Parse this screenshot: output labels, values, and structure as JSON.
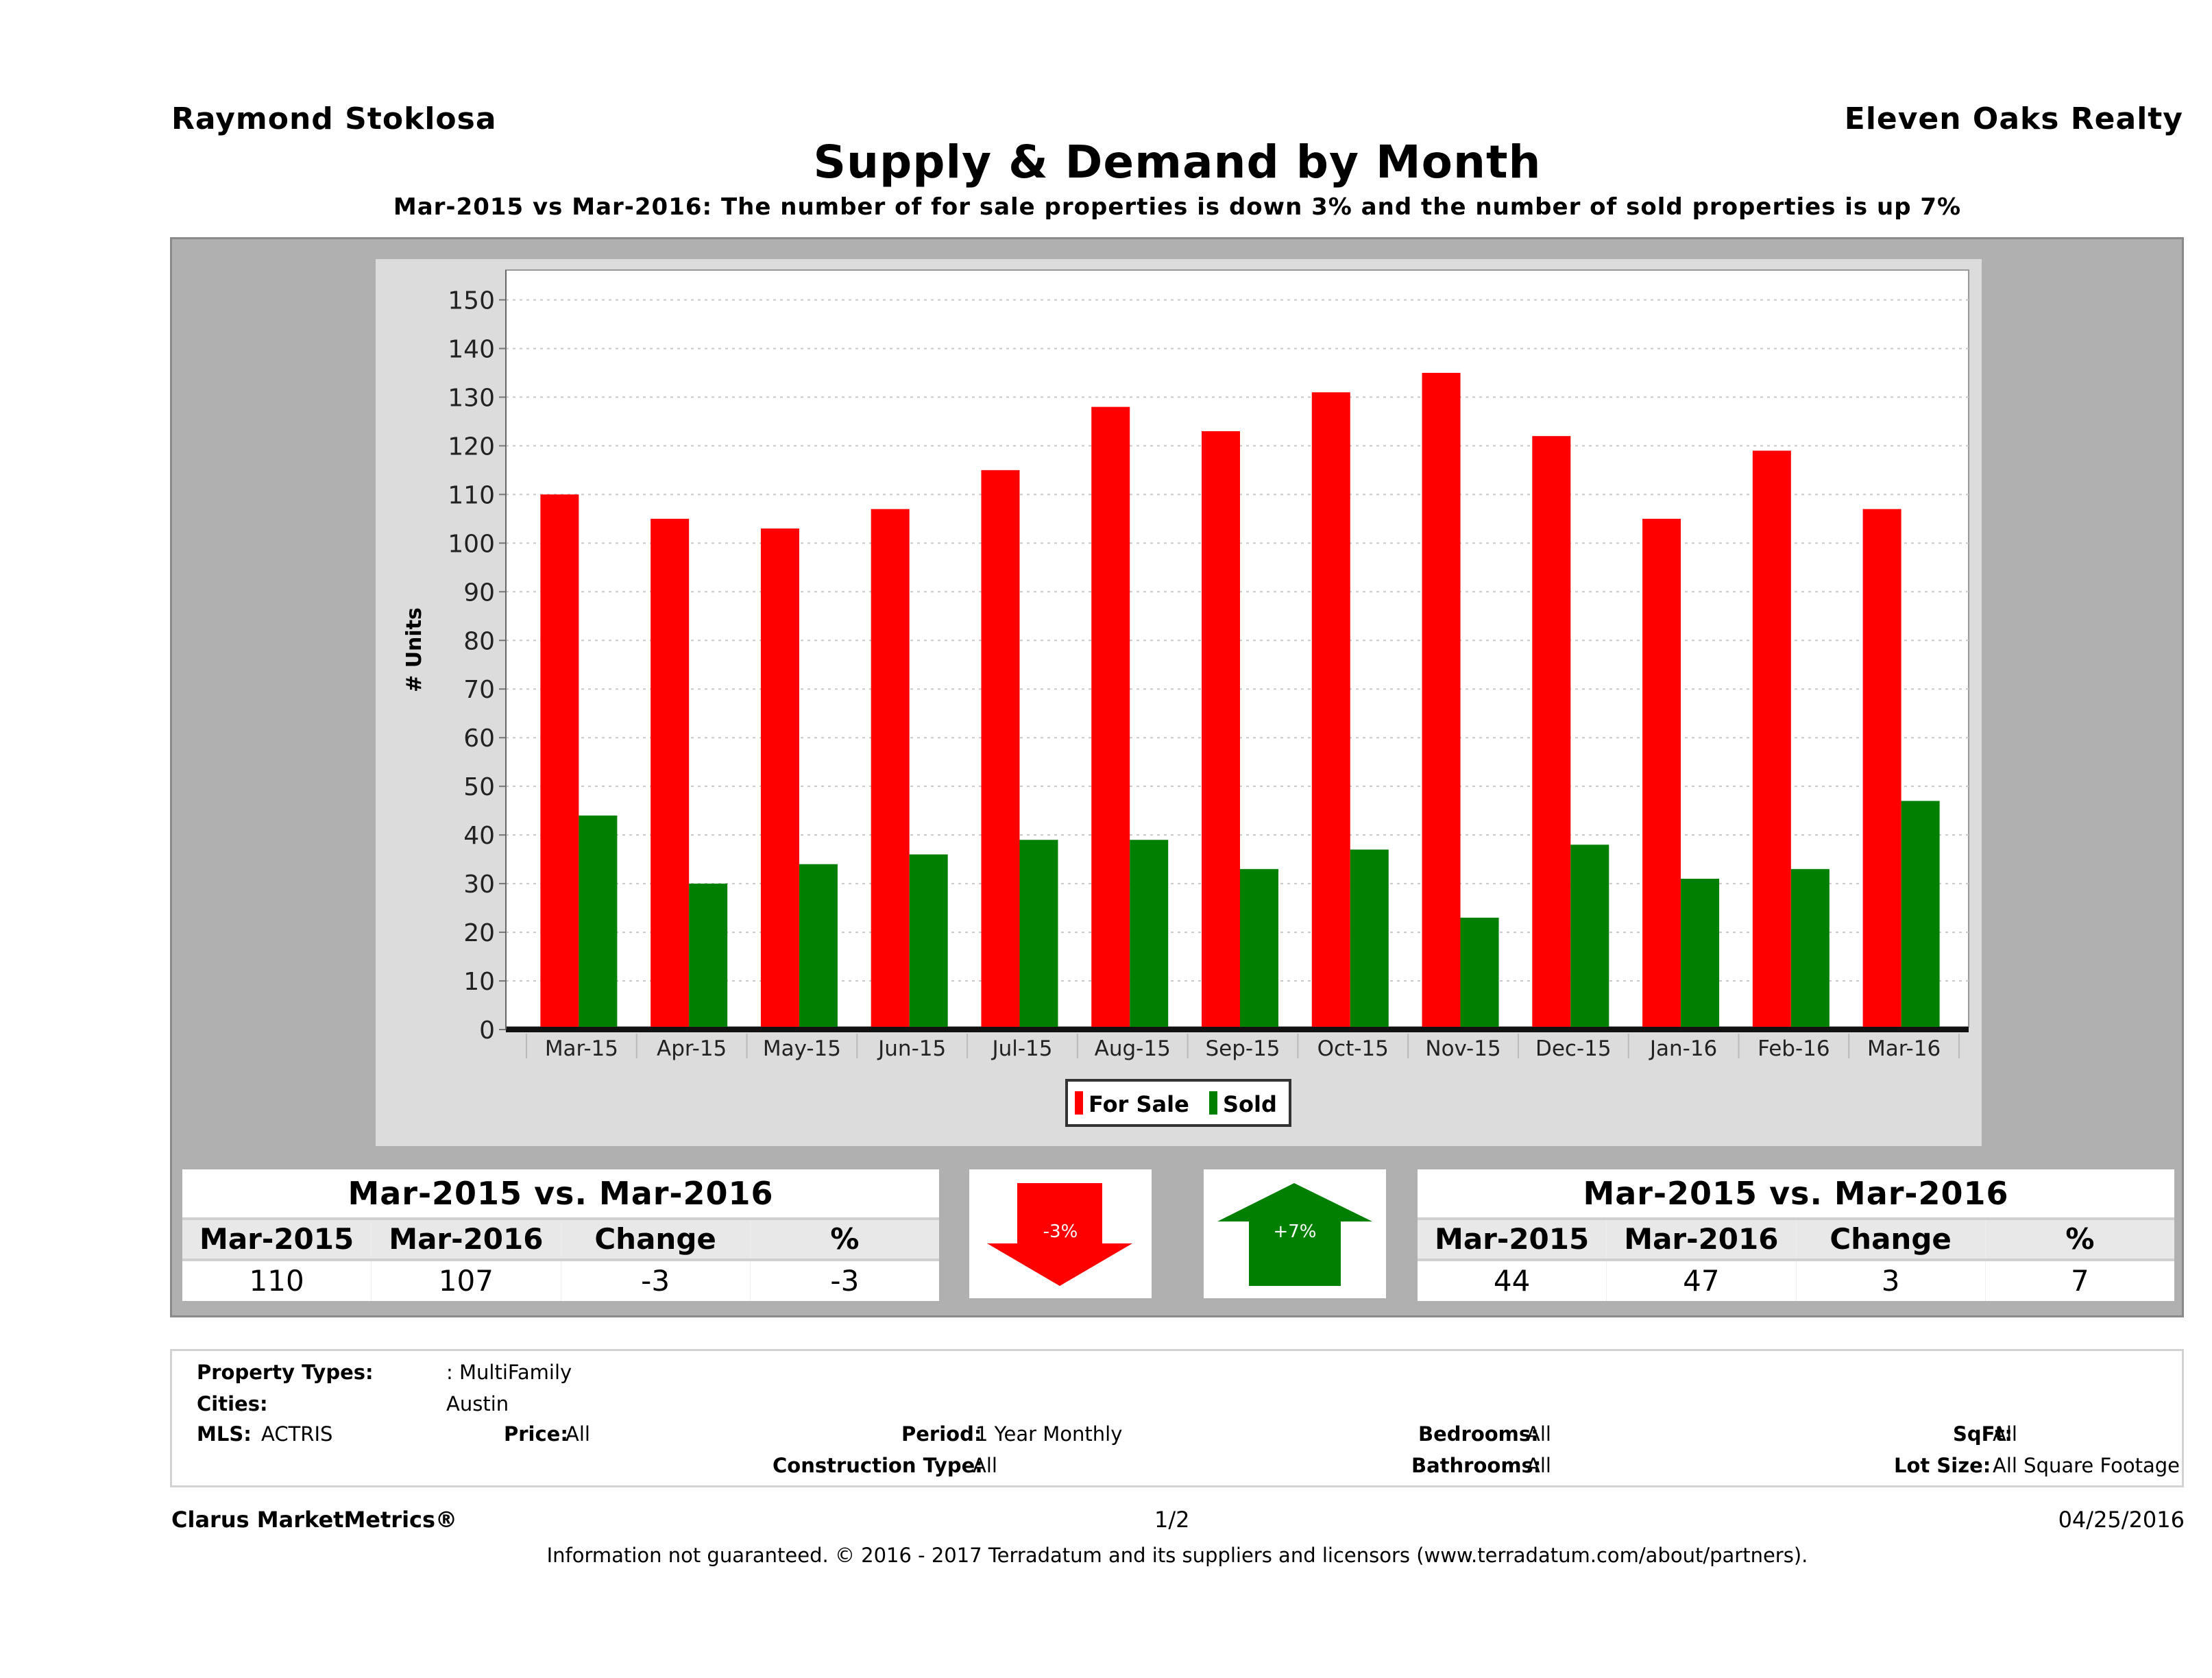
{
  "header": {
    "agent_name": "Raymond Stoklosa",
    "office_name": "Eleven Oaks Realty",
    "title": "Supply & Demand by Month",
    "subtitle": "Mar-2015 vs Mar-2016: The number of for sale properties is down 3% and the number of sold properties is up 7%"
  },
  "colors": {
    "for_sale": "#ff0000",
    "sold": "#007f00",
    "panel_bg": "#b0b0b0",
    "chart_bg": "#dcdcdc"
  },
  "chart_data": {
    "type": "bar",
    "title": "Supply & Demand by Month",
    "xlabel": "",
    "ylabel": "# Units",
    "ylim": [
      0,
      155
    ],
    "yticks": [
      0,
      10,
      20,
      30,
      40,
      50,
      60,
      70,
      80,
      90,
      100,
      110,
      120,
      130,
      140,
      150
    ],
    "grid": true,
    "legend_position": "bottom-center",
    "categories": [
      "Mar-15",
      "Apr-15",
      "May-15",
      "Jun-15",
      "Jul-15",
      "Aug-15",
      "Sep-15",
      "Oct-15",
      "Nov-15",
      "Dec-15",
      "Jan-16",
      "Feb-16",
      "Mar-16"
    ],
    "series": [
      {
        "name": "For Sale",
        "color": "#ff0000",
        "values": [
          110,
          105,
          103,
          107,
          115,
          128,
          123,
          131,
          135,
          122,
          105,
          119,
          107
        ]
      },
      {
        "name": "Sold",
        "color": "#007f00",
        "values": [
          44,
          30,
          34,
          36,
          39,
          39,
          33,
          37,
          23,
          38,
          31,
          33,
          47
        ]
      }
    ]
  },
  "for_sale_summary": {
    "title": "Mar-2015 vs. Mar-2016",
    "columns": [
      "Mar-2015",
      "Mar-2016",
      "Change",
      "%"
    ],
    "values": [
      "110",
      "107",
      "-3",
      "-3"
    ],
    "arrow_direction": "down",
    "arrow_label": "-3%"
  },
  "sold_summary": {
    "title": "Mar-2015 vs. Mar-2016",
    "columns": [
      "Mar-2015",
      "Mar-2016",
      "Change",
      "%"
    ],
    "values": [
      "44",
      "47",
      "3",
      "7"
    ],
    "arrow_direction": "up",
    "arrow_label": "+7%"
  },
  "criteria": {
    "property_types_label": "Property Types:",
    "property_types_value": ": MultiFamily",
    "cities_label": "Cities:",
    "cities_value": "Austin",
    "mls_label": "MLS:",
    "mls_value": "ACTRIS",
    "price_label": "Price:",
    "price_value": "All",
    "period_label": "Period:",
    "period_value": "1 Year Monthly",
    "bedrooms_label": "Bedrooms:",
    "bedrooms_value": "All",
    "sqft_label": "SqFt:",
    "sqft_value": "All",
    "construction_label": "Construction Type:",
    "construction_value": "All",
    "bathrooms_label": "Bathrooms:",
    "bathrooms_value": "All",
    "lot_size_label": "Lot Size:",
    "lot_size_value": "All Square Footage"
  },
  "footer": {
    "brand": "Clarus MarketMetrics®",
    "page": "1/2",
    "date": "04/25/2016",
    "disclaimer": "Information not guaranteed. © 2016 - 2017 Terradatum and its suppliers and licensors (www.terradatum.com/about/partners)."
  }
}
